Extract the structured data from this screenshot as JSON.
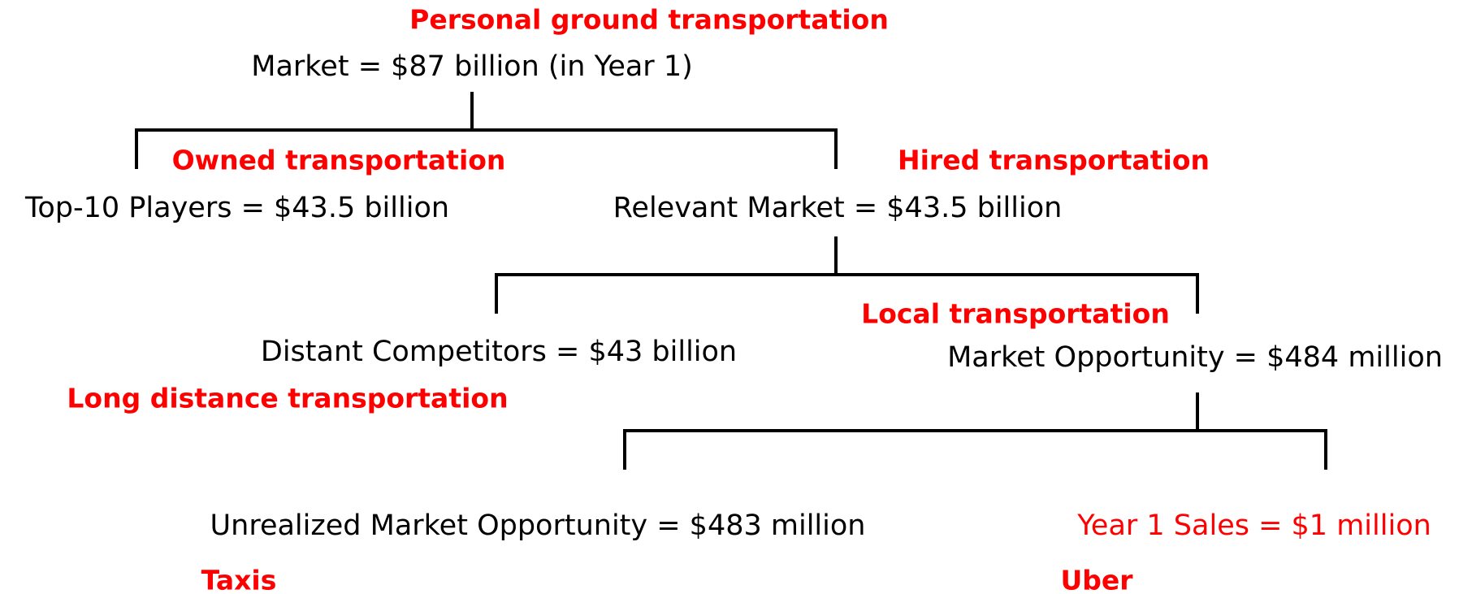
{
  "nodes": [
    {
      "category": "Personal ground transportation",
      "label": "Market = $87 billion (in Year 1)"
    },
    {
      "category": "Owned transportation",
      "label": "Top-10 Players = $43.5 billion"
    },
    {
      "category": "Hired transportation",
      "label": "Relevant Market = $43.5 billion"
    },
    {
      "category": "Long distance transportation",
      "label": "Distant Competitors = $43 billion"
    },
    {
      "category": "Local transportation",
      "label": "Market Opportunity = $484 million"
    },
    {
      "category": "Taxis",
      "label": "Unrealized Market Opportunity = $483 million"
    },
    {
      "category": "Uber",
      "label": "Year 1 Sales = $1 million"
    }
  ]
}
